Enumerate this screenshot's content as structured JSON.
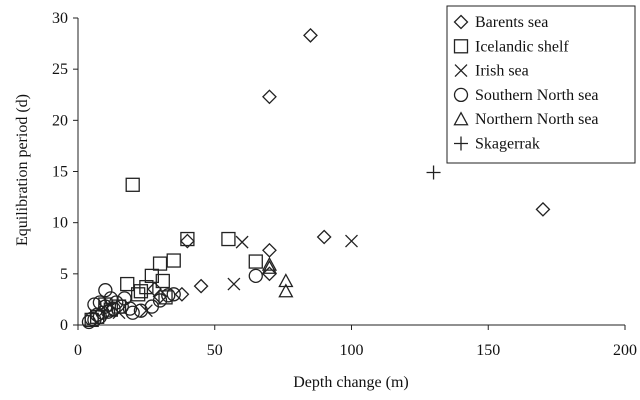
{
  "chart_data": {
    "type": "scatter",
    "title": "",
    "xlabel": "Depth change (m)",
    "ylabel": "Equilibration period (d)",
    "xlim": [
      0,
      200
    ],
    "ylim": [
      0,
      30
    ],
    "xticks": [
      0,
      50,
      100,
      150,
      200
    ],
    "yticks": [
      0,
      5,
      10,
      15,
      20,
      25,
      30
    ],
    "grid": false,
    "legend_position": "top-right",
    "series": [
      {
        "name": "Barents sea",
        "marker": "diamond",
        "points": [
          [
            85,
            28.3
          ],
          [
            70,
            22.3
          ],
          [
            170,
            11.3
          ],
          [
            90,
            8.6
          ],
          [
            70,
            7.3
          ],
          [
            70,
            5.0
          ],
          [
            45,
            3.8
          ],
          [
            38,
            3.0
          ],
          [
            40,
            8.2
          ],
          [
            28,
            3.5
          ],
          [
            30,
            2.8
          ]
        ]
      },
      {
        "name": "Icelandic shelf",
        "marker": "square",
        "points": [
          [
            20,
            13.7
          ],
          [
            40,
            8.4
          ],
          [
            55,
            8.4
          ],
          [
            30,
            6.0
          ],
          [
            35,
            6.3
          ],
          [
            65,
            6.2
          ],
          [
            27,
            4.8
          ],
          [
            18,
            4.0
          ],
          [
            25,
            3.7
          ],
          [
            23,
            3.3
          ],
          [
            31,
            4.3
          ],
          [
            32,
            2.7
          ],
          [
            22,
            3.0
          ],
          [
            10,
            2.0
          ],
          [
            15,
            1.8
          ],
          [
            12,
            1.5
          ],
          [
            5,
            0.5
          ],
          [
            7,
            0.8
          ]
        ]
      },
      {
        "name": "Irish sea",
        "marker": "x",
        "points": [
          [
            100,
            8.2
          ],
          [
            60,
            8.1
          ],
          [
            57,
            4.0
          ],
          [
            25,
            1.4
          ],
          [
            10,
            1.5
          ],
          [
            15,
            1.2
          ]
        ]
      },
      {
        "name": "Southern North sea",
        "marker": "circle",
        "points": [
          [
            10,
            3.4
          ],
          [
            65,
            4.8
          ],
          [
            6,
            2.0
          ],
          [
            8,
            2.2
          ],
          [
            10,
            1.8
          ],
          [
            13,
            1.6
          ],
          [
            16,
            1.8
          ],
          [
            19,
            1.6
          ],
          [
            20,
            1.2
          ],
          [
            23,
            1.4
          ],
          [
            27,
            1.8
          ],
          [
            30,
            2.4
          ],
          [
            33,
            2.9
          ],
          [
            35,
            3.0
          ],
          [
            12,
            2.6
          ],
          [
            9,
            1.2
          ],
          [
            7,
            1.0
          ],
          [
            5,
            0.6
          ],
          [
            4,
            0.3
          ],
          [
            6,
            0.5
          ],
          [
            8,
            0.8
          ],
          [
            11,
            1.3
          ],
          [
            14,
            2.2
          ],
          [
            17,
            2.6
          ]
        ]
      },
      {
        "name": "Northern North sea",
        "marker": "triangle",
        "points": [
          [
            70,
            5.9
          ],
          [
            70,
            5.6
          ],
          [
            76,
            4.3
          ],
          [
            76,
            3.3
          ]
        ]
      },
      {
        "name": "Skagerrak",
        "marker": "plus",
        "points": [
          [
            130,
            14.9
          ]
        ]
      }
    ]
  }
}
